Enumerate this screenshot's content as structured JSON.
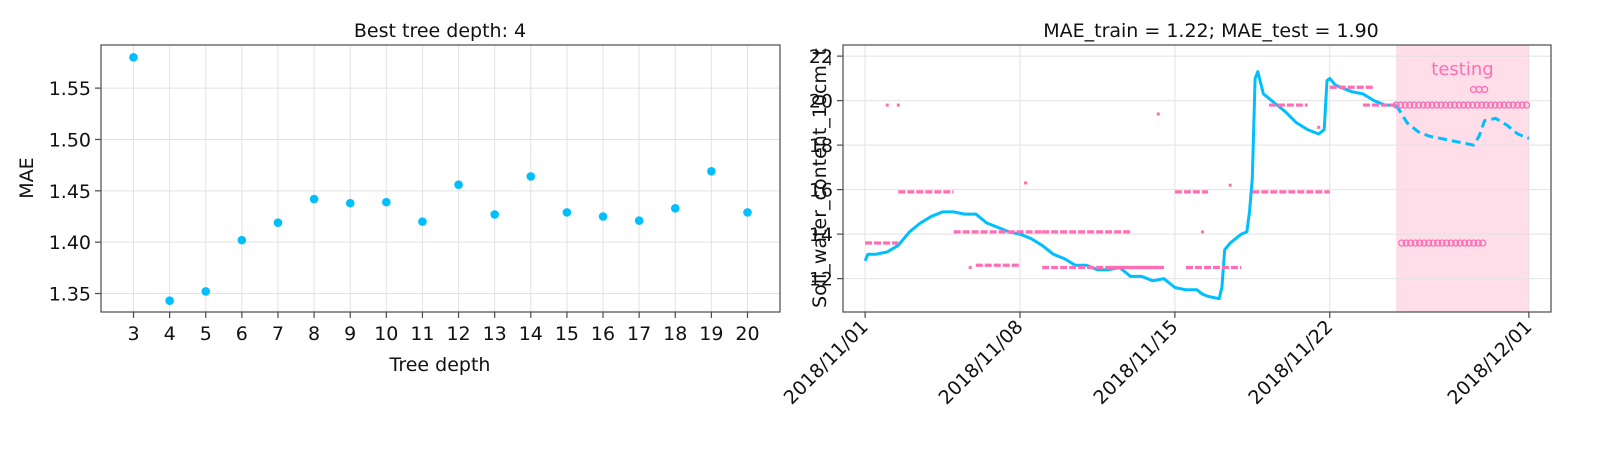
{
  "chart_data": [
    {
      "type": "scatter",
      "title": "Best tree depth: 4",
      "xlabel": "Tree depth",
      "ylabel": "MAE",
      "x": [
        3,
        4,
        5,
        6,
        7,
        8,
        9,
        10,
        11,
        12,
        13,
        14,
        15,
        16,
        17,
        18,
        19,
        20
      ],
      "y": [
        1.58,
        1.343,
        1.352,
        1.402,
        1.419,
        1.442,
        1.438,
        1.439,
        1.42,
        1.456,
        1.427,
        1.464,
        1.429,
        1.425,
        1.421,
        1.433,
        1.469,
        1.429
      ],
      "xlim": [
        2.1,
        20.9
      ],
      "ylim": [
        1.332,
        1.592
      ],
      "yticks": [
        1.35,
        1.4,
        1.45,
        1.5,
        1.55
      ],
      "yticklabels": [
        "1.35",
        "1.40",
        "1.45",
        "1.50",
        "1.55"
      ],
      "xticklabels": [
        "3",
        "4",
        "5",
        "6",
        "7",
        "8",
        "9",
        "10",
        "11",
        "12",
        "13",
        "14",
        "15",
        "16",
        "17",
        "18",
        "19",
        "20"
      ],
      "color": "#00bfff",
      "grid": true
    },
    {
      "type": "line",
      "title": "MAE_train = 1.22; MAE_test = 1.90",
      "xlabel": "",
      "ylabel": "Soil_water_content_10cm_t",
      "xlim": [
        "2018/10/31 00:00",
        "2018/12/02 00:00"
      ],
      "ylim": [
        10.5,
        22.5
      ],
      "xticks": [
        "2018/11/01",
        "2018/11/08",
        "2018/11/15",
        "2018/11/22",
        "2018/12/01"
      ],
      "yticks": [
        12,
        14,
        16,
        18,
        20,
        22
      ],
      "yticklabels": [
        "12",
        "14",
        "16",
        "18",
        "20",
        "22"
      ],
      "grid": true,
      "shaded_region": {
        "start": "2018/11/25 00:00",
        "end": "2018/12/01 00:00",
        "label": "testing",
        "color": "#ffdde9"
      },
      "series": [
        {
          "role": "actual",
          "color": "#00bfff",
          "style": "solid",
          "points": [
            [
              "2018/11/01 00:00",
              12.8
            ],
            [
              "2018/11/01 03:00",
              13.1
            ],
            [
              "2018/11/01 12:00",
              13.1
            ],
            [
              "2018/11/02 00:00",
              13.2
            ],
            [
              "2018/11/02 12:00",
              13.5
            ],
            [
              "2018/11/03 00:00",
              14.1
            ],
            [
              "2018/11/03 12:00",
              14.5
            ],
            [
              "2018/11/04 00:00",
              14.8
            ],
            [
              "2018/11/04 12:00",
              15.0
            ],
            [
              "2018/11/05 00:00",
              15.0
            ],
            [
              "2018/11/05 12:00",
              14.9
            ],
            [
              "2018/11/06 00:00",
              14.9
            ],
            [
              "2018/11/06 12:00",
              14.5
            ],
            [
              "2018/11/07 00:00",
              14.3
            ],
            [
              "2018/11/07 12:00",
              14.1
            ],
            [
              "2018/11/08 00:00",
              14.0
            ],
            [
              "2018/11/08 12:00",
              13.8
            ],
            [
              "2018/11/09 00:00",
              13.5
            ],
            [
              "2018/11/09 12:00",
              13.1
            ],
            [
              "2018/11/10 00:00",
              12.9
            ],
            [
              "2018/11/10 12:00",
              12.6
            ],
            [
              "2018/11/11 00:00",
              12.6
            ],
            [
              "2018/11/11 12:00",
              12.4
            ],
            [
              "2018/11/12 00:00",
              12.4
            ],
            [
              "2018/11/12 12:00",
              12.5
            ],
            [
              "2018/11/13 00:00",
              12.1
            ],
            [
              "2018/11/13 12:00",
              12.1
            ],
            [
              "2018/11/14 00:00",
              11.9
            ],
            [
              "2018/11/14 12:00",
              12.0
            ],
            [
              "2018/11/15 00:00",
              11.6
            ],
            [
              "2018/11/15 12:00",
              11.5
            ],
            [
              "2018/11/16 00:00",
              11.5
            ],
            [
              "2018/11/16 06:00",
              11.3
            ],
            [
              "2018/11/16 12:00",
              11.2
            ],
            [
              "2018/11/17 00:00",
              11.1
            ],
            [
              "2018/11/17 03:00",
              11.6
            ],
            [
              "2018/11/17 06:00",
              13.3
            ],
            [
              "2018/11/17 12:00",
              13.6
            ],
            [
              "2018/11/18 00:00",
              14.0
            ],
            [
              "2018/11/18 06:00",
              14.1
            ],
            [
              "2018/11/18 09:00",
              15.0
            ],
            [
              "2018/11/18 12:00",
              16.5
            ],
            [
              "2018/11/18 15:00",
              21.0
            ],
            [
              "2018/11/18 18:00",
              21.3
            ],
            [
              "2018/11/19 00:00",
              20.3
            ],
            [
              "2018/11/19 12:00",
              19.9
            ],
            [
              "2018/11/20 00:00",
              19.5
            ],
            [
              "2018/11/20 12:00",
              19.0
            ],
            [
              "2018/11/21 00:00",
              18.7
            ],
            [
              "2018/11/21 12:00",
              18.5
            ],
            [
              "2018/11/21 18:00",
              18.7
            ],
            [
              "2018/11/21 21:00",
              20.9
            ],
            [
              "2018/11/22 00:00",
              21.0
            ],
            [
              "2018/11/22 06:00",
              20.7
            ],
            [
              "2018/11/22 12:00",
              20.6
            ],
            [
              "2018/11/23 00:00",
              20.4
            ],
            [
              "2018/11/23 12:00",
              20.3
            ],
            [
              "2018/11/24 00:00",
              20.0
            ],
            [
              "2018/11/24 12:00",
              19.8
            ],
            [
              "2018/11/25 00:00",
              19.8
            ]
          ]
        },
        {
          "role": "actual-test",
          "color": "#00bfff",
          "style": "dashed",
          "points": [
            [
              "2018/11/25 00:00",
              19.8
            ],
            [
              "2018/11/25 06:00",
              19.4
            ],
            [
              "2018/11/25 12:00",
              19.0
            ],
            [
              "2018/11/26 00:00",
              18.6
            ],
            [
              "2018/11/26 12:00",
              18.4
            ],
            [
              "2018/11/27 00:00",
              18.3
            ],
            [
              "2018/11/27 12:00",
              18.2
            ],
            [
              "2018/11/28 00:00",
              18.1
            ],
            [
              "2018/11/28 12:00",
              18.0
            ],
            [
              "2018/11/28 18:00",
              18.4
            ],
            [
              "2018/11/29 00:00",
              19.1
            ],
            [
              "2018/11/29 12:00",
              19.2
            ],
            [
              "2018/11/30 00:00",
              18.9
            ],
            [
              "2018/11/30 12:00",
              18.5
            ],
            [
              "2018/12/01 00:00",
              18.3
            ]
          ]
        },
        {
          "role": "predicted",
          "color": "#ff6eb4",
          "style": "points",
          "segments": [
            [
              "2018/11/01 00:00",
              "2018/11/02 12:00",
              13.6
            ],
            [
              "2018/11/02 12:00",
              "2018/11/05 00:00",
              15.9
            ],
            [
              "2018/11/05 00:00",
              "2018/11/09 00:00",
              14.1
            ],
            [
              "2018/11/09 00:00",
              "2018/11/13 00:00",
              14.1
            ],
            [
              "2018/11/06 00:00",
              "2018/11/08 00:00",
              12.6
            ],
            [
              "2018/11/09 00:00",
              "2018/11/14 12:00",
              12.5
            ],
            [
              "2018/11/12 00:00",
              "2018/11/14 12:00",
              12.5
            ],
            [
              "2018/11/15 00:00",
              "2018/11/16 12:00",
              15.9
            ],
            [
              "2018/11/15 12:00",
              "2018/11/18 00:00",
              12.5
            ],
            [
              "2018/11/18 12:00",
              "2018/11/22 00:00",
              15.9
            ],
            [
              "2018/11/19 06:00",
              "2018/11/21 00:00",
              19.8
            ],
            [
              "2018/11/22 00:00",
              "2018/11/24 00:00",
              20.6
            ],
            [
              "2018/11/23 12:00",
              "2018/11/25 00:00",
              19.8
            ]
          ],
          "scatter": [
            [
              "2018/11/02 00:00",
              19.8
            ],
            [
              "2018/11/02 12:00",
              19.8
            ],
            [
              "2018/11/05 18:00",
              12.5
            ],
            [
              "2018/11/08 06:00",
              16.3
            ],
            [
              "2018/11/14 06:00",
              19.4
            ],
            [
              "2018/11/16 06:00",
              14.1
            ],
            [
              "2018/11/17 12:00",
              16.2
            ],
            [
              "2018/11/21 12:00",
              18.8
            ]
          ]
        },
        {
          "role": "predicted-test",
          "color": "#ff6eb4",
          "style": "circles",
          "segments": [
            [
              "2018/11/25 00:00",
              "2018/12/01 00:00",
              19.8
            ],
            [
              "2018/11/25 06:00",
              "2018/11/29 00:00",
              13.6
            ]
          ],
          "scatter": [
            [
              "2018/11/28 12:00",
              20.5
            ],
            [
              "2018/11/28 18:00",
              20.5
            ],
            [
              "2018/11/29 00:00",
              20.5
            ]
          ]
        }
      ]
    }
  ]
}
